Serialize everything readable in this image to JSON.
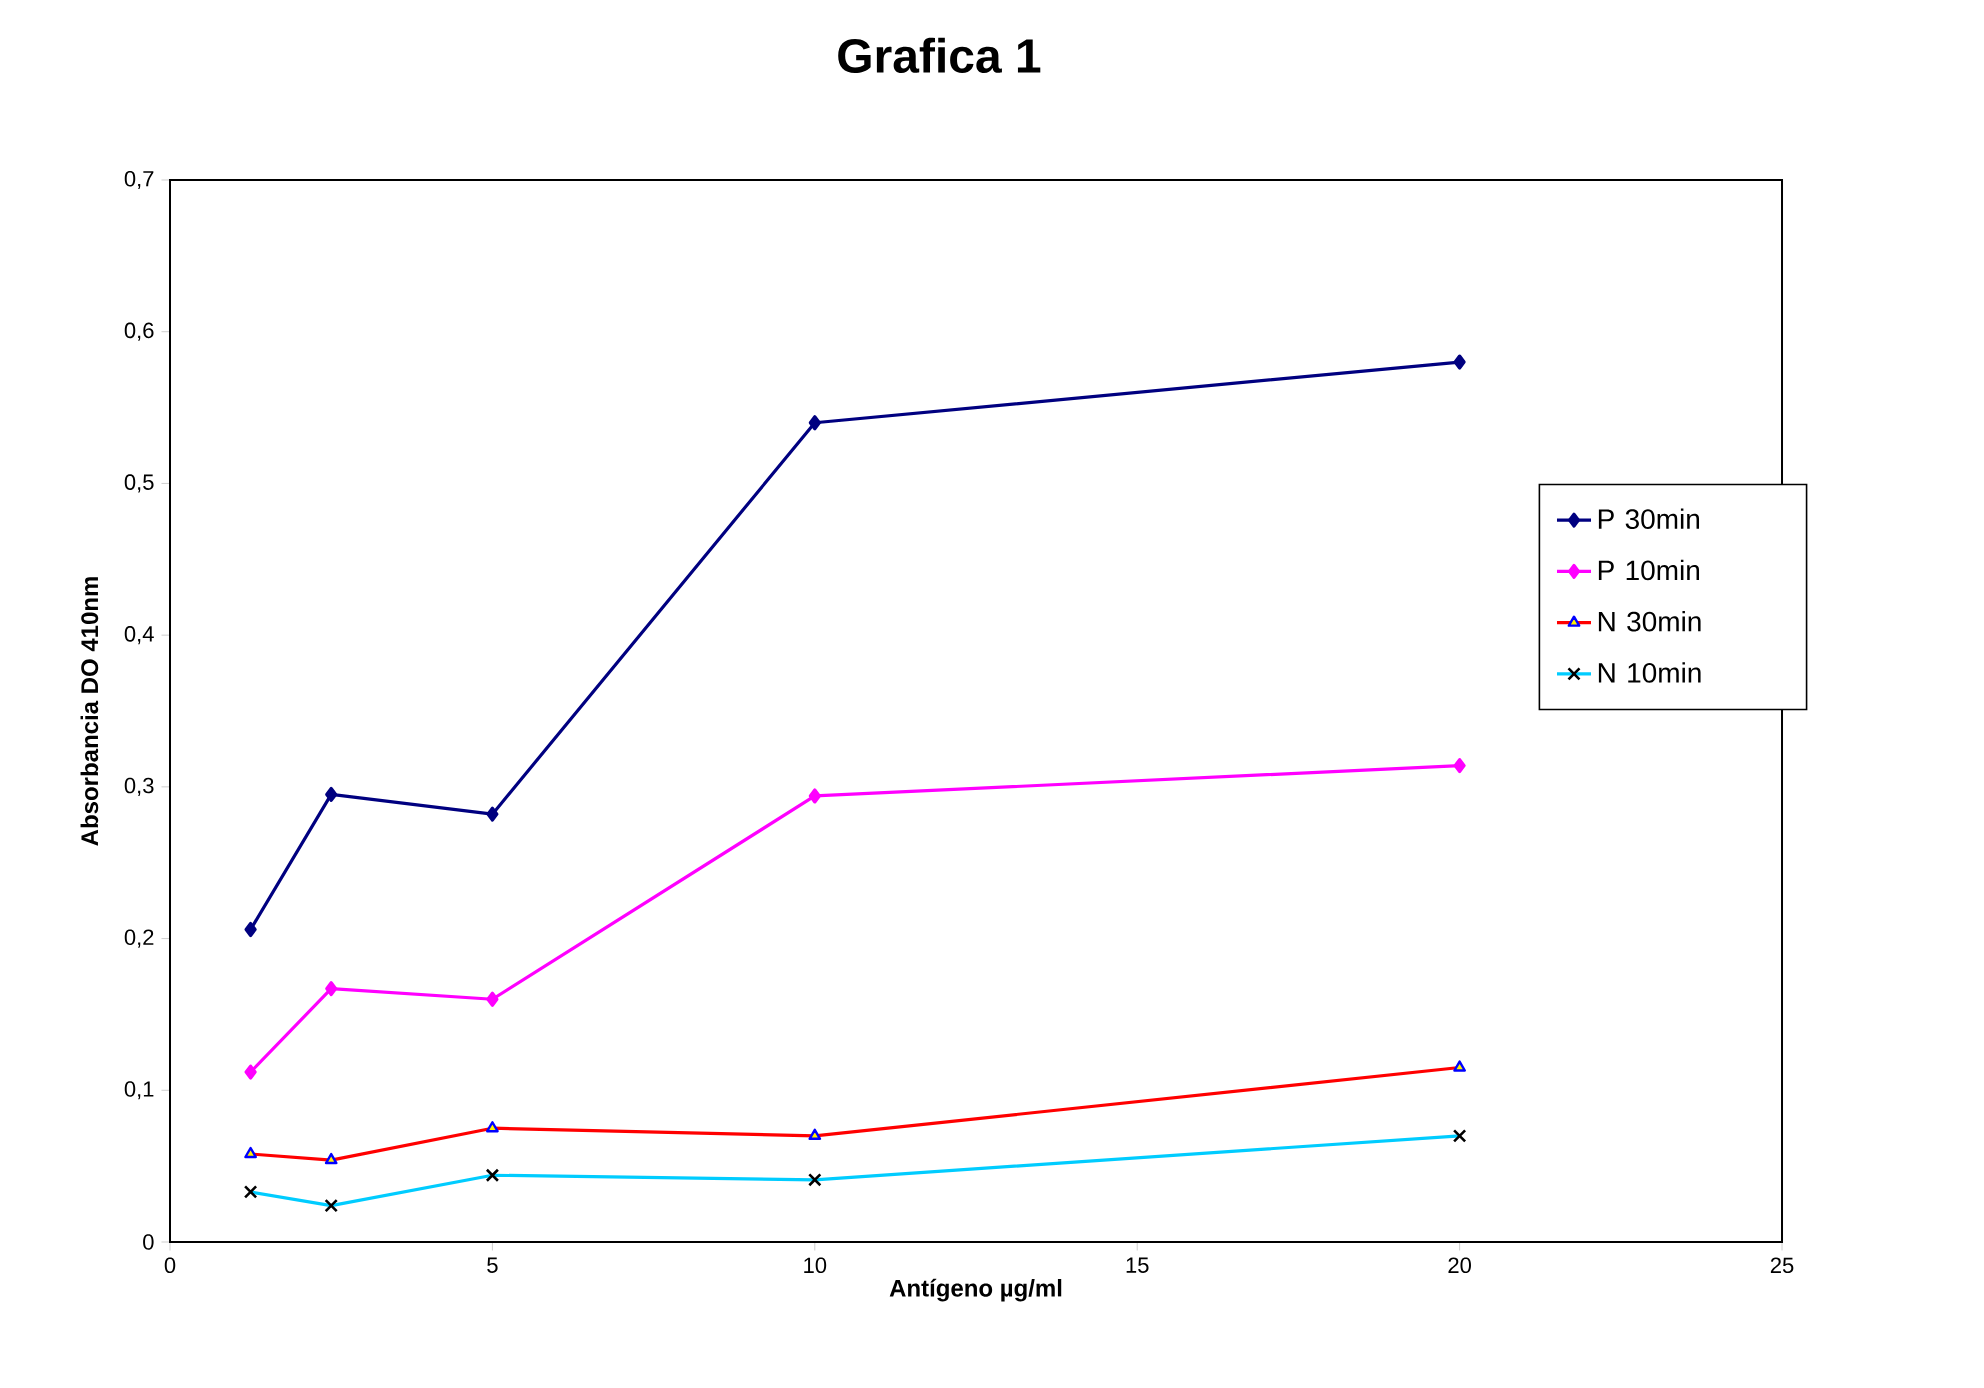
{
  "chart_data": {
    "type": "line",
    "title": "Grafica 1",
    "xlabel": "Antígeno µg/ml",
    "ylabel": "Absorbancia DO 410nm",
    "x": [
      1.25,
      2.5,
      5,
      10,
      20
    ],
    "series": [
      {
        "name": "P 30min",
        "color": "#000080",
        "marker": "diamond",
        "values": [
          0.206,
          0.295,
          0.282,
          0.54,
          0.58
        ]
      },
      {
        "name": "P 10min",
        "color": "#ff00ff",
        "marker": "diamond",
        "values": [
          0.112,
          0.167,
          0.16,
          0.294,
          0.314
        ]
      },
      {
        "name": "N 30min",
        "color": "#ff0000",
        "marker": "triangle",
        "values": [
          0.058,
          0.054,
          0.075,
          0.07,
          0.115
        ]
      },
      {
        "name": "N 10min",
        "color": "#00ccff",
        "marker": "cross",
        "values": [
          0.033,
          0.024,
          0.044,
          0.041,
          0.07
        ]
      }
    ],
    "xlim": [
      0,
      25
    ],
    "xticks": [
      0,
      5,
      10,
      15,
      20,
      25
    ],
    "ylim": [
      0,
      0.7
    ],
    "yticks": [
      0,
      {
        "value": 0.1,
        "label": "0,1"
      },
      {
        "value": 0.2,
        "label": "0,2"
      },
      {
        "value": 0.3,
        "label": "0,3"
      },
      {
        "value": 0.4,
        "label": "0,4"
      },
      {
        "value": 0.5,
        "label": "0,5"
      },
      {
        "value": 0.6,
        "label": "0,6"
      },
      {
        "value": 0.7,
        "label": "0,7"
      }
    ],
    "grid": false,
    "legend": "right",
    "line_style": "solid"
  }
}
